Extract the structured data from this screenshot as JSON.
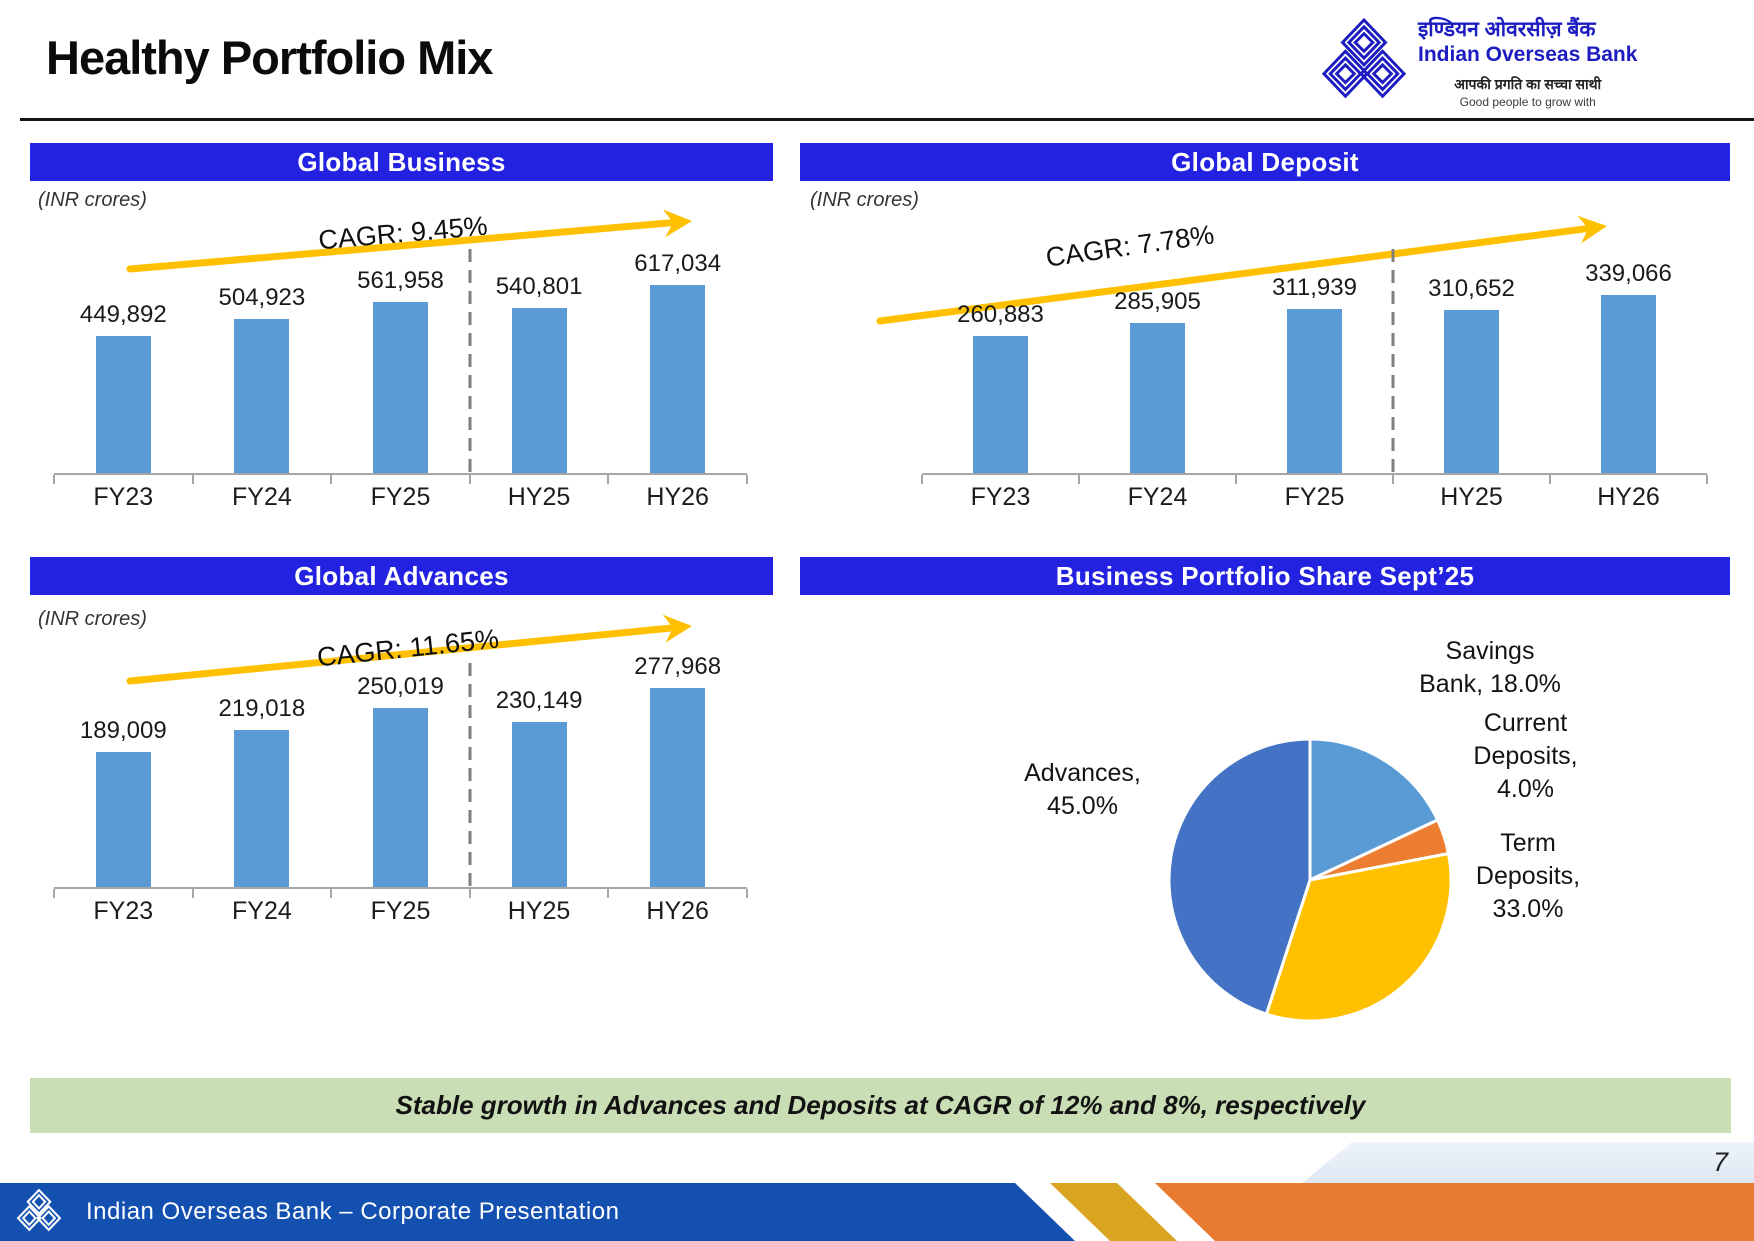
{
  "header": {
    "title": "Healthy Portfolio Mix",
    "logo": {
      "hindi_name": "इण्डियन ओवरसीज़ बैंक",
      "english_name": "Indian Overseas Bank",
      "hindi_tagline": "आपकी प्रगति का सच्चा साथी",
      "english_tagline": "Good people to grow with"
    }
  },
  "chart_data": [
    {
      "type": "bar",
      "title": "Global Business",
      "unit": "(INR crores)",
      "cagr_label": "CAGR: 9.45%",
      "categories": [
        "FY23",
        "FY24",
        "FY25",
        "HY25",
        "HY26"
      ],
      "values": [
        449892,
        504923,
        561958,
        540801,
        617034
      ],
      "value_labels": [
        "449,892",
        "504,923",
        "561,958",
        "540,801",
        "617,034"
      ],
      "divider_between": [
        "FY25",
        "HY25"
      ]
    },
    {
      "type": "bar",
      "title": "Global Deposit",
      "unit": "(INR crores)",
      "cagr_label": "CAGR: 7.78%",
      "categories": [
        "FY23",
        "FY24",
        "FY25",
        "HY25",
        "HY26"
      ],
      "values": [
        260883,
        285905,
        311939,
        310652,
        339066
      ],
      "value_labels": [
        "260,883",
        "285,905",
        "311,939",
        "310,652",
        "339,066"
      ],
      "divider_between": [
        "FY25",
        "HY25"
      ]
    },
    {
      "type": "bar",
      "title": "Global Advances",
      "unit": "(INR crores)",
      "cagr_label": "CAGR: 11.65%",
      "categories": [
        "FY23",
        "FY24",
        "FY25",
        "HY25",
        "HY26"
      ],
      "values": [
        189009,
        219018,
        250019,
        230149,
        277968
      ],
      "value_labels": [
        "189,009",
        "219,018",
        "250,019",
        "230,149",
        "277,968"
      ],
      "divider_between": [
        "FY25",
        "HY25"
      ]
    },
    {
      "type": "pie",
      "title": "Business Portfolio Share Sept’25",
      "start_angle_deg": 0,
      "direction": "clockwise",
      "slices": [
        {
          "name": "Savings Bank",
          "value": 18.0,
          "color": "#5b9bd5",
          "label": "Savings\nBank, 18.0%"
        },
        {
          "name": "Current Deposits",
          "value": 4.0,
          "color": "#ed7d31",
          "label": "Current\nDeposits,\n4.0%"
        },
        {
          "name": "Term Deposits",
          "value": 33.0,
          "color": "#ffc000",
          "label": "Term\nDeposits,\n33.0%"
        },
        {
          "name": "Advances",
          "value": 45.0,
          "color": "#4472c4",
          "label": "Advances,\n45.0%"
        }
      ]
    }
  ],
  "banner": {
    "text": "Stable growth in Advances and Deposits at CAGR of 12% and 8%, respectively"
  },
  "footer": {
    "text": "Indian Overseas Bank – Corporate Presentation",
    "page_number": "7"
  },
  "icons": {
    "logo": "iob-triple-diamond-logo"
  },
  "colors": {
    "panel_header_blue": "#2222e0",
    "bar_blue": "#5b9bd5",
    "arrow_gold": "#ffc000",
    "axis_gray": "#a6a6a6",
    "divider_gray": "#7f7f7f",
    "banner_green": "#c9deb5",
    "footer_blue": "#1450b0",
    "footer_gold": "#d9a420",
    "footer_orange": "#e87b30",
    "pie_advances_blue": "#4472c4",
    "pie_savings_blue": "#5b9bd5",
    "pie_current_orange": "#ed7d31",
    "pie_term_gold": "#ffc000"
  }
}
